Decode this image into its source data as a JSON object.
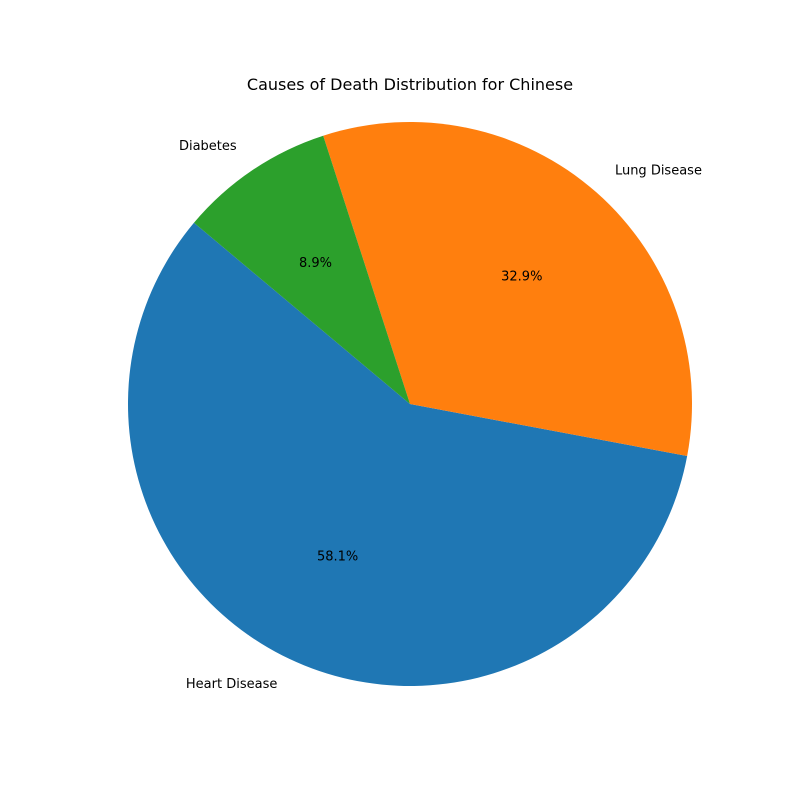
{
  "chart_data": {
    "type": "pie",
    "title": "Causes of Death Distribution for Chinese",
    "categories": [
      "Heart Disease",
      "Lung Disease",
      "Diabetes"
    ],
    "values": [
      58.1,
      32.9,
      8.9
    ],
    "percent_labels": [
      "58.1%",
      "32.9%",
      "8.9%"
    ],
    "colors": [
      "#1f77b4",
      "#ff7f0e",
      "#2ca02c"
    ],
    "start_angle_deg": 140,
    "direction": "counterclockwise",
    "legend": "none"
  }
}
